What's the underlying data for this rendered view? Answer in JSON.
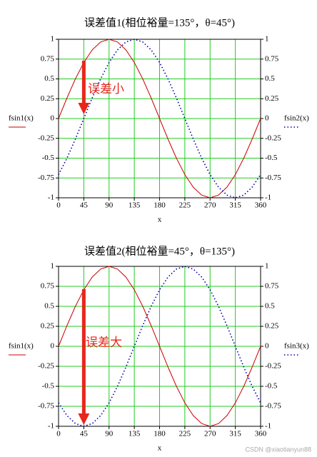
{
  "chart_data": [
    {
      "type": "line",
      "title": "误差值1(相位裕量=135°，θ=45°)",
      "x_label": "x",
      "y_label": "fsin1(x)",
      "y2_label": "fsin2(x)",
      "annotation": "误差小",
      "annotation_color": "#e8261c",
      "x": [
        0,
        15,
        30,
        45,
        60,
        75,
        90,
        105,
        120,
        135,
        150,
        165,
        180,
        195,
        210,
        225,
        240,
        255,
        270,
        285,
        300,
        315,
        330,
        345,
        360
      ],
      "series": [
        {
          "name": "fsin1(x)",
          "color": "#cc0000",
          "style": "solid",
          "values": [
            0,
            0.259,
            0.5,
            0.707,
            0.866,
            0.966,
            1,
            0.966,
            0.866,
            0.707,
            0.5,
            0.259,
            0,
            -0.259,
            -0.5,
            -0.707,
            -0.866,
            -0.966,
            -1,
            -0.966,
            -0.866,
            -0.707,
            -0.5,
            -0.259,
            0
          ]
        },
        {
          "name": "fsin2(x)",
          "color": "#0000aa",
          "style": "dotted",
          "axis": "y2",
          "values": [
            -0.707,
            -0.5,
            -0.259,
            0,
            0.259,
            0.5,
            0.707,
            0.866,
            0.966,
            1,
            0.966,
            0.866,
            0.707,
            0.5,
            0.259,
            0,
            -0.259,
            -0.5,
            -0.707,
            -0.866,
            -0.966,
            -1,
            -0.966,
            -0.866,
            -0.707
          ]
        }
      ],
      "xlim": [
        0,
        360
      ],
      "xticks": [
        0,
        45,
        90,
        135,
        180,
        225,
        270,
        315,
        360
      ],
      "ylim": [
        -1,
        1
      ],
      "yticks": [
        -1,
        -0.75,
        -0.5,
        -0.25,
        0,
        0.25,
        0.5,
        0.75,
        1
      ],
      "y2lim": [
        -1,
        1
      ],
      "y2ticks": [
        -1,
        -0.75,
        -0.5,
        -0.25,
        0,
        0.25,
        0.5,
        0.75,
        1
      ],
      "grid": true,
      "grid_color": "#22cc22"
    },
    {
      "type": "line",
      "title": "误差值2(相位裕量=45°，θ=135°)",
      "x_label": "x",
      "y_label": "fsin1(x)",
      "y2_label": "fsin3(x)",
      "annotation": "误差大",
      "annotation_color": "#e8261c",
      "x": [
        0,
        15,
        30,
        45,
        60,
        75,
        90,
        105,
        120,
        135,
        150,
        165,
        180,
        195,
        210,
        225,
        240,
        255,
        270,
        285,
        300,
        315,
        330,
        345,
        360
      ],
      "series": [
        {
          "name": "fsin1(x)",
          "color": "#cc0000",
          "style": "solid",
          "values": [
            0,
            0.259,
            0.5,
            0.707,
            0.866,
            0.966,
            1,
            0.966,
            0.866,
            0.707,
            0.5,
            0.259,
            0,
            -0.259,
            -0.5,
            -0.707,
            -0.866,
            -0.966,
            -1,
            -0.966,
            -0.866,
            -0.707,
            -0.5,
            -0.259,
            0
          ]
        },
        {
          "name": "fsin3(x)",
          "color": "#0000aa",
          "style": "dotted",
          "axis": "y2",
          "values": [
            -0.707,
            -0.866,
            -0.966,
            -1,
            -0.966,
            -0.866,
            -0.707,
            -0.5,
            -0.259,
            0,
            0.259,
            0.5,
            0.707,
            0.866,
            0.966,
            1,
            0.966,
            0.866,
            0.707,
            0.5,
            0.259,
            0,
            -0.259,
            -0.5,
            -0.707
          ]
        }
      ],
      "xlim": [
        0,
        360
      ],
      "xticks": [
        0,
        45,
        90,
        135,
        180,
        225,
        270,
        315,
        360
      ],
      "ylim": [
        -1,
        1
      ],
      "yticks": [
        -1,
        -0.75,
        -0.5,
        -0.25,
        0,
        0.25,
        0.5,
        0.75,
        1
      ],
      "y2lim": [
        -1,
        1
      ],
      "y2ticks": [
        -1,
        -0.75,
        -0.5,
        -0.25,
        0,
        0.25,
        0.5,
        0.75,
        1
      ],
      "grid": true,
      "grid_color": "#22cc22"
    }
  ],
  "watermark": "CSDN @xiaotianyun88"
}
